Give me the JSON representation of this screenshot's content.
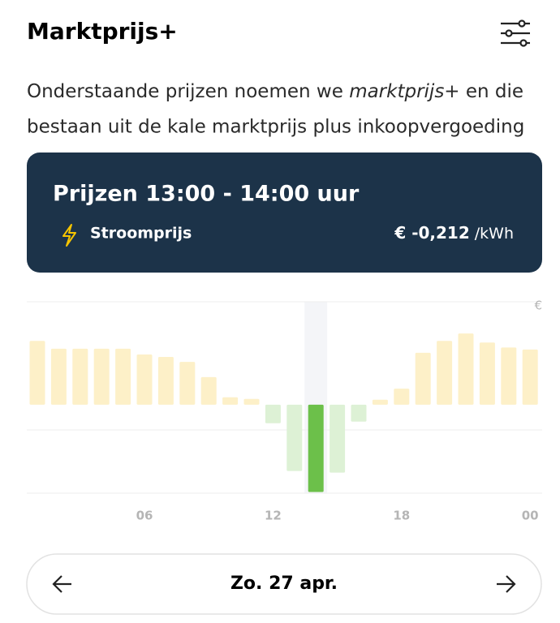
{
  "header": {
    "title": "Marktprijs+"
  },
  "description": {
    "before": "Onderstaande prijzen noemen we ",
    "emphasis": "marktprijs+",
    "after": " en die bestaan uit de kale marktprijs plus inkoopvergoeding"
  },
  "tooltip": {
    "title": "Prijzen 13:00 - 14:00 uur",
    "label": "Stroomprijs",
    "price": "€ -0,212",
    "unit": "/kWh"
  },
  "chart_data": {
    "type": "bar",
    "y_unit": "€",
    "categories": [
      null,
      null,
      null,
      null,
      null,
      "06",
      null,
      null,
      null,
      null,
      null,
      "12",
      null,
      null,
      null,
      null,
      null,
      "18",
      null,
      null,
      null,
      null,
      null,
      "00"
    ],
    "values": [
      0.155,
      0.136,
      0.136,
      0.136,
      0.136,
      0.122,
      0.116,
      0.104,
      0.067,
      0.018,
      0.014,
      -0.045,
      -0.161,
      -0.212,
      -0.165,
      -0.041,
      0.012,
      0.039,
      0.126,
      0.155,
      0.173,
      0.151,
      0.139,
      0.134
    ],
    "ylim": [
      -0.215,
      0.25
    ],
    "selected": 13,
    "positive_color": "#fdf0c8",
    "negative_color": "#ddf1d5",
    "selected_color": "#6cc04a"
  },
  "date_nav": {
    "label": "Zo. 27 apr."
  }
}
